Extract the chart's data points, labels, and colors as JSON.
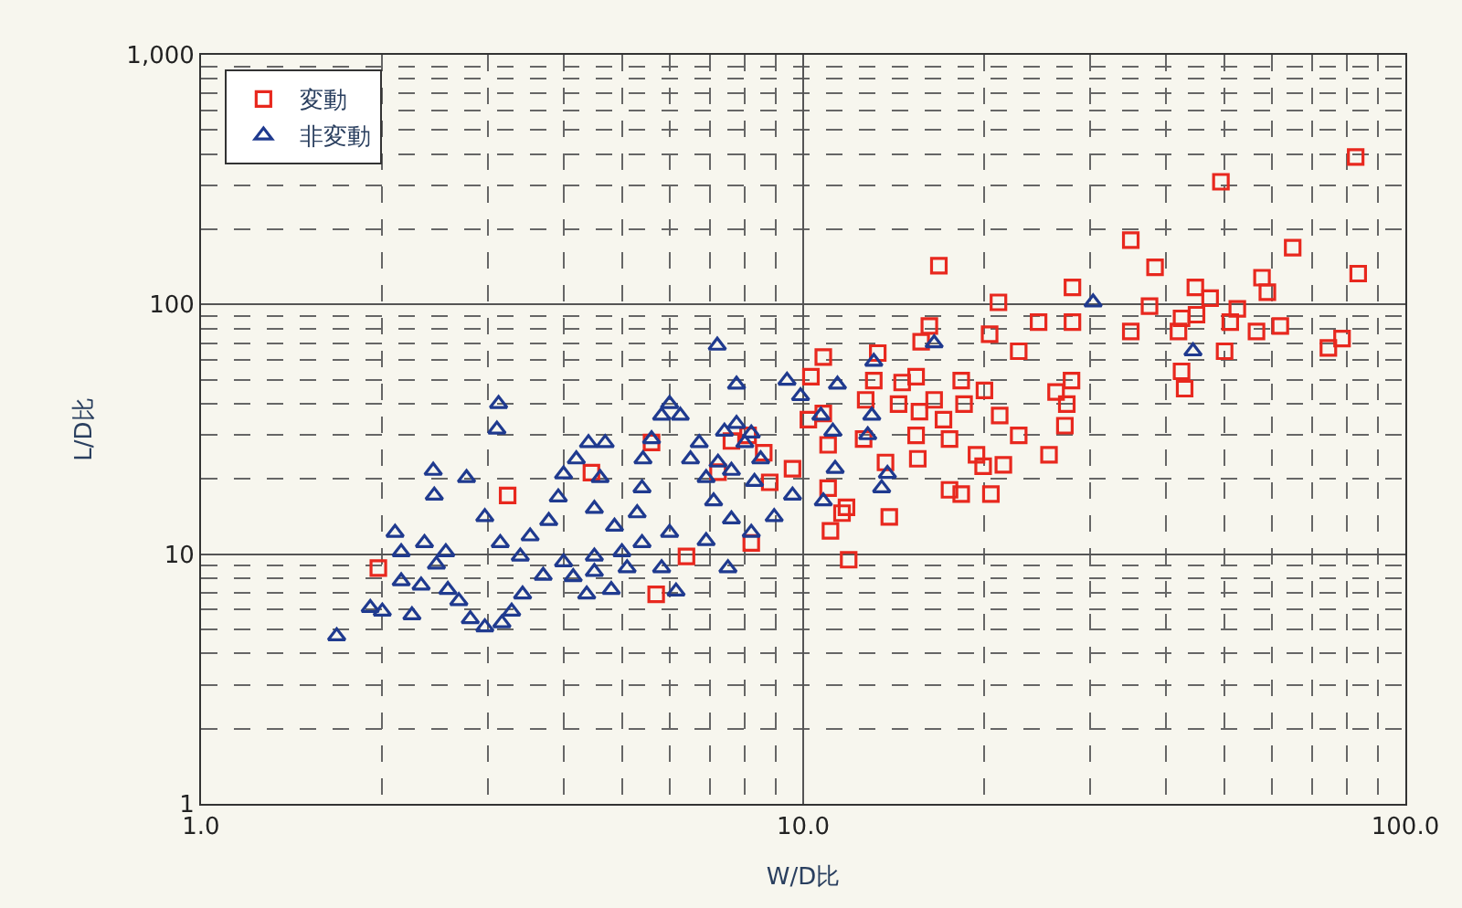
{
  "chart_data": {
    "type": "scatter",
    "xlabel": "W/D比",
    "ylabel": "L/D比",
    "log": "xy",
    "grid": true,
    "legend": "top left",
    "xlim": [
      1,
      100
    ],
    "xticks": [
      {
        "value": 1,
        "label": "1.0"
      },
      {
        "value": 10,
        "label": "10.0"
      },
      {
        "value": 100,
        "label": "100.0"
      }
    ],
    "ylim": [
      1,
      1000
    ],
    "yticks": [
      1,
      10,
      100,
      {
        "value": 1000,
        "label": "1,000"
      }
    ],
    "series": [
      {
        "name": "変動",
        "color": "#e8281e",
        "marker": "square",
        "x": [
          1.97,
          3.23,
          4.45,
          5.6,
          5.7,
          6.4,
          7.22,
          7.6,
          8.1,
          8.2,
          8.6,
          8.8,
          9.6,
          10.2,
          10.3,
          10.8,
          10.8,
          11.0,
          11.0,
          11.1,
          11.6,
          11.8,
          11.9,
          12.6,
          12.7,
          13.1,
          13.3,
          13.7,
          13.9,
          14.4,
          14.6,
          15.4,
          15.6,
          15.4,
          15.5,
          15.7,
          16.2,
          16.8,
          16.5,
          17.1,
          17.5,
          17.5,
          18.3,
          18.3,
          18.5,
          19.4,
          19.9,
          20.0,
          20.4,
          20.5,
          21.1,
          21.2,
          21.5,
          22.8,
          22.8,
          24.6,
          25.6,
          26.3,
          27.4,
          27.2,
          27.9,
          28,
          28,
          35,
          37.6,
          35,
          38.4,
          42.5,
          42,
          42.5,
          44.8,
          45,
          47.4,
          49.4,
          50.1,
          51.2,
          57.8,
          59,
          56.6,
          62,
          65,
          74.5,
          78.5,
          82.7,
          83.5,
          52.6,
          43
        ],
        "values": [
          8.8,
          17.2,
          21.2,
          28,
          6.9,
          9.8,
          21.3,
          28.4,
          29.9,
          11.1,
          25.5,
          19.4,
          22,
          34.6,
          51.4,
          61.6,
          36.6,
          27.4,
          18.4,
          12.4,
          14.6,
          15.4,
          9.5,
          28.9,
          41.5,
          49.6,
          63.9,
          23.3,
          14.1,
          39.9,
          48.7,
          51.4,
          37.2,
          29.9,
          24.1,
          70.9,
          82,
          143,
          41.5,
          34.6,
          28.9,
          18.1,
          17.4,
          49.6,
          39.9,
          25,
          22.5,
          45.3,
          76,
          17.4,
          102,
          35.9,
          22.8,
          29.9,
          65,
          85,
          25,
          44.6,
          39.9,
          32.7,
          49.6,
          85,
          117,
          181,
          98.5,
          78,
          141,
          54,
          78,
          88,
          117,
          91,
          106,
          310,
          65,
          85,
          128,
          112,
          78,
          82,
          169,
          67,
          73,
          390,
          133,
          96,
          46
        ]
      },
      {
        "name": "非変動",
        "color": "#1f3a8f",
        "marker": "triangle",
        "x": [
          1.68,
          1.91,
          2.0,
          2.24,
          2.15,
          2.32,
          2.57,
          2.68,
          2.8,
          2.96,
          3.16,
          3.28,
          3.42,
          2.15,
          2.35,
          2.46,
          2.55,
          2.1,
          2.44,
          2.43,
          2.76,
          3.1,
          3.12,
          2.96,
          3.14,
          3.39,
          3.52,
          3.78,
          3.92,
          4.0,
          4.2,
          4.4,
          4.69,
          4.6,
          4.5,
          4.86,
          5.3,
          5.4,
          5.42,
          5.6,
          5.82,
          6.0,
          6.25,
          6.5,
          6.72,
          6.9,
          7.22,
          7.4,
          7.75,
          8.0,
          8.2,
          8.5,
          7.1,
          7.6,
          8.2,
          8.95,
          5.4,
          5.0,
          4.5,
          4.0,
          3.7,
          4.15,
          4.5,
          5.1,
          5.82,
          6.15,
          4.8,
          4.37,
          7.2,
          9.4,
          9.9,
          10.7,
          11.2,
          13.0,
          12.8,
          13.1,
          11.4,
          13.5,
          13.8,
          11.3,
          10.8,
          9.6,
          16.5,
          30.3,
          44.4,
          7.6,
          8.3,
          7.75,
          7.5,
          6.0,
          6.9
        ],
        "values": [
          4.7,
          6.1,
          5.9,
          5.7,
          7.8,
          7.5,
          7.2,
          6.5,
          5.5,
          5.1,
          5.3,
          5.9,
          6.9,
          10.2,
          11.1,
          9.1,
          10.2,
          12.2,
          17.2,
          21.6,
          20.2,
          31.6,
          40,
          14.1,
          11.1,
          9.8,
          11.8,
          13.6,
          16.9,
          20.9,
          24,
          27.9,
          27.9,
          20.2,
          15.2,
          12.9,
          14.6,
          18.4,
          24,
          28.9,
          35.9,
          40,
          35.9,
          24,
          27.9,
          20.2,
          23.3,
          31,
          33.3,
          27.9,
          30.5,
          24,
          16.3,
          13.8,
          12.2,
          14.1,
          11.1,
          10.2,
          9.8,
          9.3,
          8.2,
          8.1,
          8.5,
          8.8,
          8.8,
          7.1,
          7.2,
          6.9,
          68.5,
          49.6,
          43,
          35.9,
          31,
          35.9,
          30,
          59,
          47.8,
          18.4,
          21,
          22,
          16.3,
          17.2,
          70,
          102,
          65,
          21.6,
          19.5,
          47.8,
          8.8,
          12.2,
          11.3
        ]
      }
    ]
  }
}
